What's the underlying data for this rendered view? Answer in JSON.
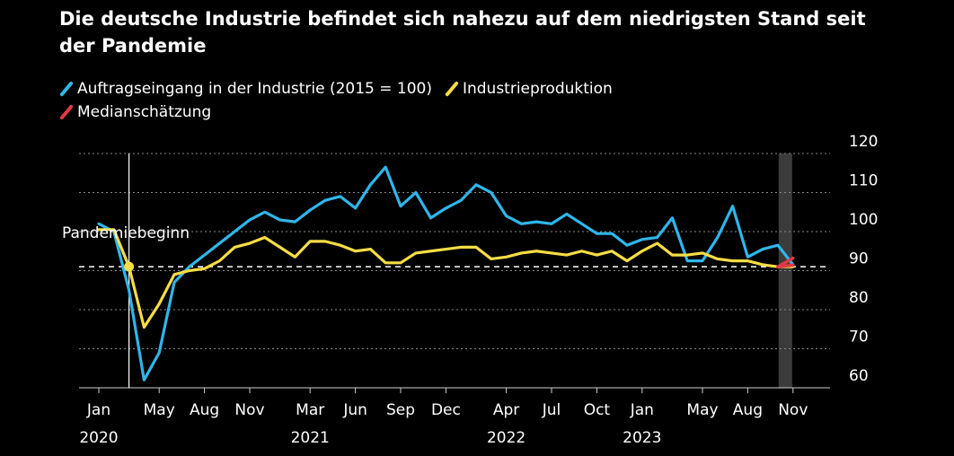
{
  "title": "Die deutsche Industrie befindet sich nahezu auf dem niedrigsten Stand seit der Pandemie",
  "colors": {
    "background": "#000000",
    "orders": "#2fb6ea",
    "production": "#f6dd44",
    "estimate": "#e13a46",
    "grid": "#8a8a8a",
    "forecast_band": "#3b3b3b",
    "annotation_line": "#ffffff"
  },
  "legend": [
    {
      "label": "Auftragseingang in der Industrie (2015 = 100)",
      "color": "#2fb6ea",
      "icon": "diagonal-stroke"
    },
    {
      "label": "Industrieproduktion",
      "color": "#f6dd44",
      "icon": "diagonal-stroke"
    },
    {
      "label": "Medianschätzung",
      "color": "#e13a46",
      "icon": "diagonal-stroke"
    }
  ],
  "chart_data": {
    "type": "line",
    "title": "Die deutsche Industrie befindet sich nahezu auf dem niedrigsten Stand seit der Pandemie",
    "xlabel": "",
    "ylabel": "",
    "x_start": "Jan 2020",
    "ylim": [
      57,
      121
    ],
    "yticks": [
      60,
      70,
      80,
      90,
      100,
      110,
      120
    ],
    "y_axis_side": "right",
    "grid": "horizontal dotted",
    "xticks": [
      {
        "index": 0,
        "label": "Jan",
        "year": "2020"
      },
      {
        "index": 4,
        "label": "May",
        "year": ""
      },
      {
        "index": 7,
        "label": "Aug",
        "year": ""
      },
      {
        "index": 10,
        "label": "Nov",
        "year": ""
      },
      {
        "index": 14,
        "label": "Mar",
        "year": "2021"
      },
      {
        "index": 17,
        "label": "Jun",
        "year": ""
      },
      {
        "index": 20,
        "label": "Sep",
        "year": ""
      },
      {
        "index": 23,
        "label": "Dec",
        "year": ""
      },
      {
        "index": 27,
        "label": "Apr",
        "year": "2022"
      },
      {
        "index": 30,
        "label": "Jul",
        "year": ""
      },
      {
        "index": 33,
        "label": "Oct",
        "year": ""
      },
      {
        "index": 36,
        "label": "Jan",
        "year": "2023"
      },
      {
        "index": 40,
        "label": "May",
        "year": ""
      },
      {
        "index": 43,
        "label": "Aug",
        "year": ""
      },
      {
        "index": 46,
        "label": "Nov",
        "year": ""
      }
    ],
    "reference_line": {
      "value": 91,
      "style": "dashed"
    },
    "annotation": {
      "label": "Pandemiebeginn",
      "index": 2,
      "value": 91
    },
    "forecast_band": {
      "index": 46
    },
    "series": [
      {
        "name": "Auftragseingang in der Industrie (2015 = 100)",
        "color": "#2fb6ea",
        "start_index": 0,
        "values": [
          102,
          100,
          85,
          62,
          69,
          87,
          91,
          94,
          97,
          100,
          103,
          105,
          103,
          102.5,
          105.5,
          108,
          109,
          106,
          112,
          116.5,
          106.5,
          110,
          103.5,
          106,
          108,
          112,
          110,
          104,
          102,
          102.5,
          102,
          104.5,
          102,
          99.5,
          99.5,
          96.5,
          98,
          98.5,
          103.5,
          92.5,
          92.5,
          98.5,
          106.5,
          93.5,
          95.5,
          96.5,
          91.5
        ]
      },
      {
        "name": "Industrieproduktion",
        "color": "#f6dd44",
        "start_index": 0,
        "values": [
          100.5,
          100.5,
          91,
          75.5,
          81.5,
          89,
          90,
          90.5,
          92.5,
          96,
          97,
          98.5,
          96,
          93.5,
          97.5,
          97.5,
          96.5,
          95,
          95.5,
          92,
          92,
          94.5,
          95,
          95.5,
          96,
          96,
          93,
          93.5,
          94.5,
          95,
          94.5,
          94,
          95,
          94,
          95,
          92.5,
          95,
          97,
          94,
          94,
          94.5,
          93,
          92.5,
          92.5,
          91.5,
          91,
          91
        ]
      },
      {
        "name": "Medianschätzung",
        "color": "#e13a46",
        "start_index": 45,
        "values": [
          91,
          93.2
        ],
        "paired_with": "Auftragseingang in der Industrie (2015 = 100)"
      },
      {
        "name": "Medianschätzung",
        "color": "#e13a46",
        "start_index": 45,
        "values": [
          91,
          91.4
        ],
        "paired_with": "Industrieproduktion"
      }
    ]
  }
}
